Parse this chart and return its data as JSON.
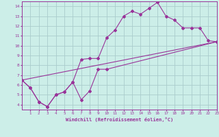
{
  "xlabel": "Windchill (Refroidissement éolien,°C)",
  "bg_color": "#cceee8",
  "grid_color": "#aacccc",
  "line_color": "#993399",
  "xlim": [
    0,
    23
  ],
  "ylim": [
    3.5,
    14.5
  ],
  "xticks": [
    1,
    2,
    3,
    4,
    5,
    6,
    7,
    8,
    9,
    10,
    11,
    12,
    13,
    14,
    15,
    16,
    17,
    18,
    19,
    20,
    21,
    22,
    23
  ],
  "yticks": [
    4,
    5,
    6,
    7,
    8,
    9,
    10,
    11,
    12,
    13,
    14
  ],
  "line1_x": [
    0,
    1,
    2,
    3,
    4,
    5,
    6,
    7,
    8,
    9,
    10,
    11,
    12,
    13,
    14,
    15,
    16,
    17,
    18,
    19,
    20,
    21,
    22,
    23
  ],
  "line1_y": [
    6.5,
    5.7,
    4.3,
    3.8,
    5.0,
    5.3,
    6.3,
    8.6,
    8.7,
    8.7,
    10.8,
    11.6,
    13.0,
    13.5,
    13.2,
    13.8,
    14.4,
    13.0,
    12.6,
    11.8,
    11.8,
    11.8,
    10.5,
    10.4
  ],
  "line2_x": [
    0,
    1,
    2,
    3,
    4,
    5,
    6,
    7,
    8,
    9,
    10,
    23
  ],
  "line2_y": [
    6.5,
    5.7,
    4.3,
    3.8,
    5.0,
    5.3,
    6.3,
    4.5,
    5.4,
    7.6,
    7.6,
    10.4
  ],
  "line3_x": [
    0,
    23
  ],
  "line3_y": [
    6.5,
    10.4
  ]
}
